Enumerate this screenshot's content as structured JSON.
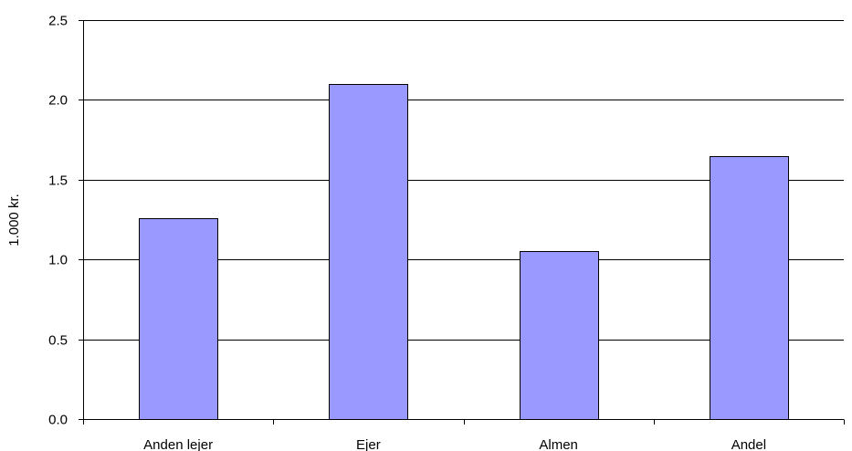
{
  "chart_data": {
    "type": "bar",
    "title": "",
    "xlabel": "",
    "ylabel": "1.000 kr.",
    "categories": [
      "Anden lejer",
      "Ejer",
      "Almen",
      "Andel"
    ],
    "values": [
      1.26,
      2.1,
      1.05,
      1.65
    ],
    "ylim": [
      0,
      2.5
    ],
    "yticks": [
      "0.0",
      "0.5",
      "1.0",
      "1.5",
      "2.0",
      "2.5"
    ],
    "grid": true,
    "legend": "none",
    "colors": {
      "bar_fill": "#9999ff",
      "bar_stroke": "#000000",
      "gridline": "#000000",
      "axis": "#000000",
      "background": "#ffffff"
    }
  }
}
